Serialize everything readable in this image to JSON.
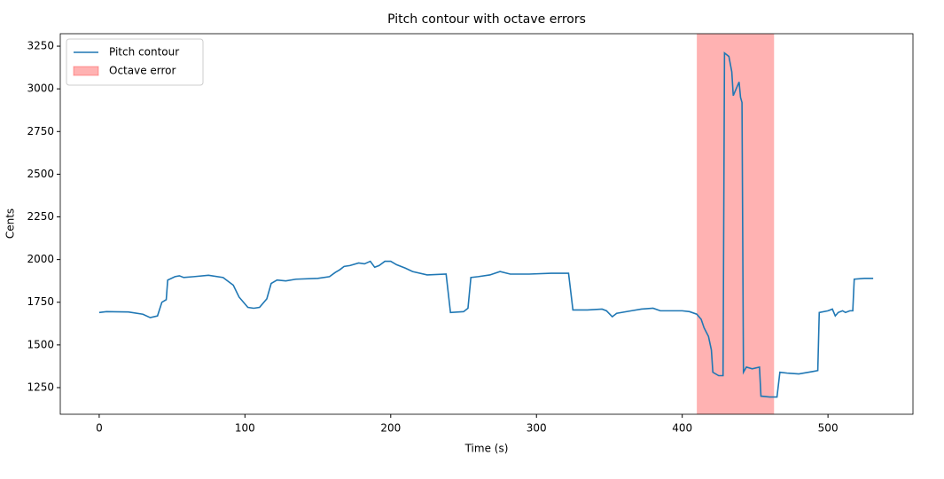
{
  "chart_data": {
    "type": "line",
    "title": "Pitch contour with octave errors",
    "xlabel": "Time (s)",
    "ylabel": "Cents",
    "x": [
      0,
      5,
      20,
      30,
      35,
      40,
      43,
      46,
      47,
      52,
      55,
      58,
      65,
      75,
      85,
      92,
      96,
      102,
      106,
      110,
      115,
      118,
      122,
      128,
      135,
      150,
      158,
      162,
      165,
      168,
      172,
      178,
      182,
      186,
      189,
      192,
      196,
      200,
      204,
      210,
      215,
      225,
      238,
      241,
      250,
      253,
      255,
      260,
      268,
      275,
      282,
      295,
      310,
      322,
      325,
      335,
      345,
      348,
      352,
      355,
      365,
      372,
      380,
      385,
      400,
      405,
      410,
      413,
      415,
      418,
      420,
      421,
      425,
      428,
      429,
      432,
      434,
      435,
      438,
      439,
      440,
      441,
      442,
      444,
      448,
      453,
      454,
      460,
      465,
      467,
      472,
      480,
      490,
      493,
      494,
      500,
      503,
      505,
      507,
      510,
      512,
      515,
      517,
      518,
      525,
      531
    ],
    "series": [
      {
        "name": "Pitch contour",
        "color": "#1f77b4",
        "values": [
          1690,
          1695,
          1693,
          1680,
          1660,
          1670,
          1750,
          1765,
          1880,
          1900,
          1905,
          1895,
          1900,
          1908,
          1895,
          1850,
          1780,
          1720,
          1715,
          1720,
          1770,
          1860,
          1880,
          1875,
          1885,
          1890,
          1900,
          1925,
          1940,
          1960,
          1965,
          1980,
          1975,
          1990,
          1955,
          1965,
          1990,
          1990,
          1970,
          1950,
          1930,
          1910,
          1915,
          1690,
          1695,
          1715,
          1895,
          1900,
          1910,
          1930,
          1915,
          1915,
          1920,
          1920,
          1705,
          1705,
          1710,
          1700,
          1665,
          1685,
          1700,
          1710,
          1715,
          1700,
          1700,
          1695,
          1680,
          1650,
          1600,
          1550,
          1470,
          1340,
          1320,
          1320,
          3210,
          3190,
          3100,
          2960,
          3020,
          3040,
          2950,
          2920,
          1340,
          1370,
          1360,
          1370,
          1200,
          1195,
          1195,
          1340,
          1335,
          1330,
          1345,
          1350,
          1690,
          1700,
          1710,
          1670,
          1690,
          1700,
          1690,
          1700,
          1700,
          1885,
          1890,
          1890
        ]
      }
    ],
    "spans": [
      {
        "name": "Octave error",
        "color": "#ff0000",
        "start": 410,
        "end": 463
      }
    ],
    "xlim": [
      -26.7,
      558.3
    ],
    "ylim": [
      1094,
      3323
    ],
    "xticks": [
      0,
      100,
      200,
      300,
      400,
      500
    ],
    "yticks": [
      1250,
      1500,
      1750,
      2000,
      2250,
      2500,
      2750,
      3000,
      3250
    ],
    "legend": "upper left",
    "grid": false
  }
}
